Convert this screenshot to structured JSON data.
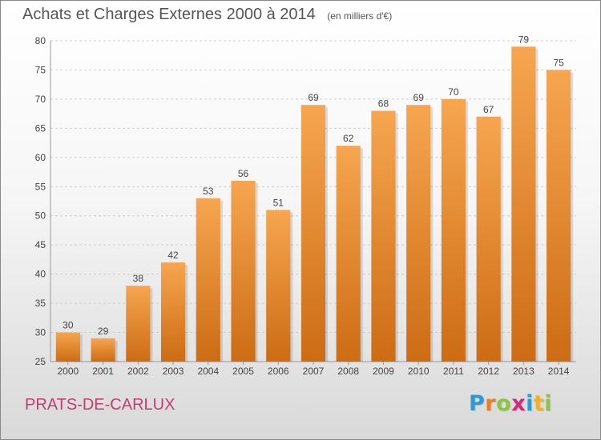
{
  "header": {
    "title": "Achats et Charges Externes 2000 à 2014",
    "subtitle": "(en milliers d'€)"
  },
  "footer": {
    "commune": "PRATS-DE-CARLUX",
    "logo_letters": [
      "P",
      "r",
      "o",
      "x",
      "i",
      "t",
      "i"
    ],
    "logo_colors": [
      "#2d9ad6",
      "#f07c1e",
      "#8cc63e",
      "#d6287a",
      "#2d9ad6",
      "#f2b21c",
      "#8cc63e"
    ]
  },
  "chart_data": {
    "type": "bar",
    "title": "Achats et Charges Externes 2000 à 2014",
    "subtitle": "(en milliers d'€)",
    "xlabel": "",
    "ylabel": "",
    "categories": [
      "2000",
      "2001",
      "2002",
      "2003",
      "2004",
      "2005",
      "2006",
      "2007",
      "2008",
      "2009",
      "2010",
      "2011",
      "2012",
      "2013",
      "2014"
    ],
    "values": [
      30,
      29,
      38,
      42,
      53,
      56,
      51,
      69,
      62,
      68,
      69,
      70,
      67,
      79,
      75
    ],
    "ylim": [
      25,
      80
    ],
    "yticks": [
      25,
      30,
      35,
      40,
      45,
      50,
      55,
      60,
      65,
      70,
      75,
      80
    ],
    "grid": true,
    "data_labels": true,
    "bar_color_top": "#f7a550",
    "bar_color_bottom": "#cc6c14"
  }
}
